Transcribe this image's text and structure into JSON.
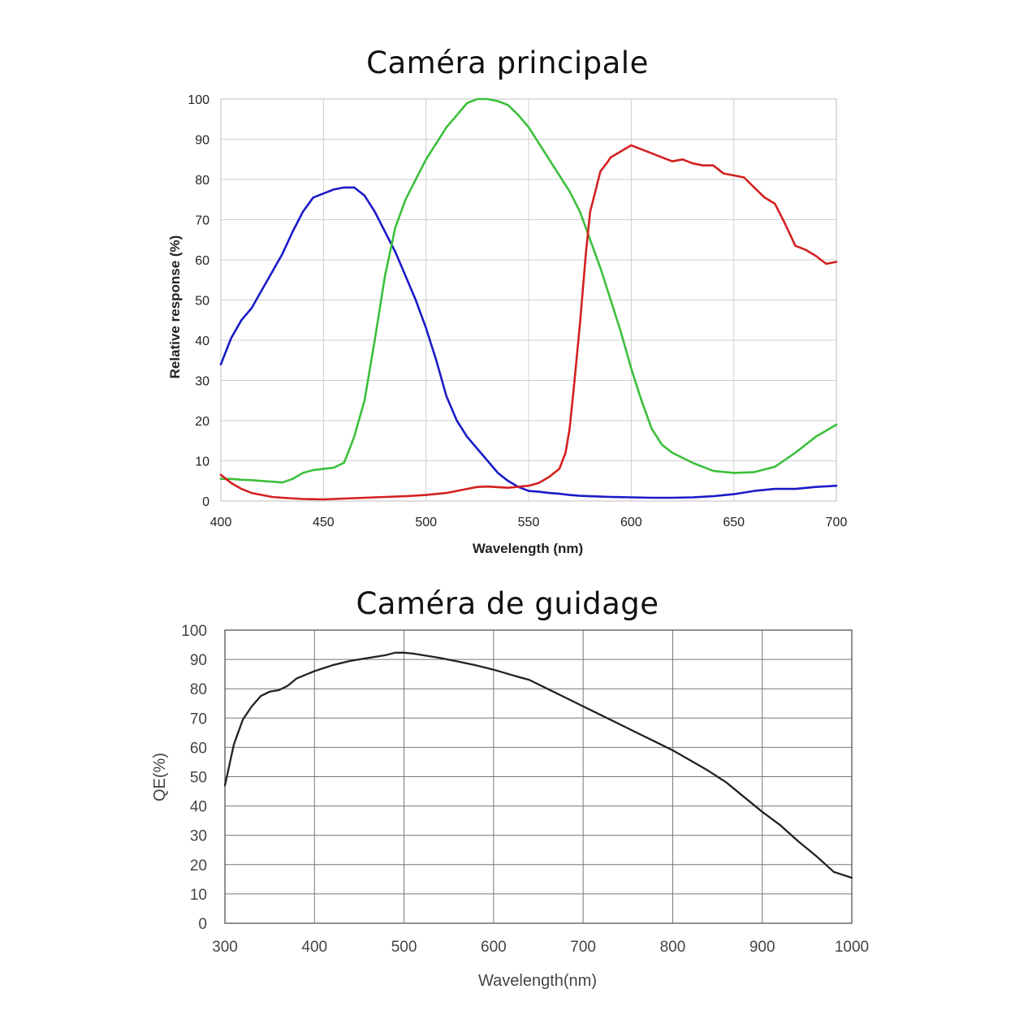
{
  "chart_data": [
    {
      "type": "line",
      "title": "Caméra principale",
      "xlabel": "Wavelength (nm)",
      "ylabel": "Relative response (%)",
      "xlim": [
        400,
        700
      ],
      "ylim": [
        0,
        100
      ],
      "xticks": [
        400,
        450,
        500,
        550,
        600,
        650,
        700
      ],
      "yticks": [
        0,
        10,
        20,
        30,
        40,
        50,
        60,
        70,
        80,
        90,
        100
      ],
      "grid": true,
      "series": [
        {
          "color": "#1a1ac8",
          "x": [
            400,
            405,
            410,
            415,
            420,
            425,
            430,
            435,
            440,
            445,
            450,
            455,
            460,
            465,
            470,
            475,
            480,
            485,
            490,
            495,
            500,
            505,
            510,
            515,
            520,
            525,
            530,
            535,
            540,
            545,
            550,
            555,
            560,
            565,
            570,
            575,
            580,
            585,
            590,
            600,
            610,
            620,
            630,
            640,
            650,
            660,
            670,
            680,
            690,
            700
          ],
          "y": [
            34,
            40.5,
            45,
            48,
            52.5,
            57,
            61.5,
            67,
            72,
            75.5,
            76.5,
            77.5,
            78,
            78,
            76,
            72,
            67,
            62,
            56,
            50,
            43,
            35,
            26,
            20,
            16,
            13,
            10,
            7,
            5,
            3.5,
            2.5,
            2.3,
            2,
            1.8,
            1.5,
            1.3,
            1.2,
            1.1,
            1.0,
            0.9,
            0.8,
            0.8,
            0.9,
            1.2,
            1.7,
            2.5,
            3.0,
            3.0,
            3.5,
            3.8
          ]
        },
        {
          "color": "#3cbf3c",
          "x": [
            400,
            405,
            410,
            415,
            420,
            425,
            430,
            435,
            440,
            445,
            450,
            455,
            460,
            462,
            465,
            470,
            475,
            480,
            485,
            490,
            495,
            500,
            505,
            510,
            515,
            520,
            525,
            530,
            535,
            540,
            545,
            550,
            555,
            560,
            565,
            570,
            575,
            580,
            585,
            590,
            595,
            600,
            605,
            610,
            615,
            620,
            630,
            640,
            650,
            660,
            670,
            680,
            690,
            700
          ],
          "y": [
            5.5,
            5.5,
            5.3,
            5.2,
            5.0,
            4.8,
            4.6,
            5.5,
            7.0,
            7.7,
            8.0,
            8.3,
            9.5,
            12,
            16,
            25,
            40,
            56,
            68,
            75,
            80,
            85,
            89,
            93,
            96,
            99,
            100,
            100,
            99.5,
            98.5,
            96,
            93,
            89,
            85,
            81,
            77,
            72,
            65,
            58,
            50,
            42,
            33,
            25,
            18,
            14,
            12,
            9.5,
            7.5,
            7,
            7.2,
            8.5,
            12,
            16,
            19
          ]
        },
        {
          "color": "#d42020",
          "x": [
            400,
            405,
            410,
            415,
            420,
            425,
            430,
            440,
            450,
            460,
            470,
            480,
            490,
            500,
            510,
            520,
            525,
            530,
            540,
            550,
            555,
            560,
            565,
            568,
            570,
            572,
            575,
            578,
            580,
            582,
            585,
            588,
            590,
            595,
            600,
            605,
            610,
            615,
            620,
            625,
            630,
            635,
            640,
            645,
            650,
            655,
            660,
            665,
            670,
            675,
            680,
            685,
            690,
            695,
            700
          ],
          "y": [
            6.5,
            4.5,
            3.0,
            2.0,
            1.5,
            1.0,
            0.8,
            0.5,
            0.4,
            0.6,
            0.8,
            1.0,
            1.2,
            1.5,
            2.0,
            3.0,
            3.5,
            3.6,
            3.3,
            3.8,
            4.5,
            6.0,
            8.0,
            12,
            18,
            28,
            44,
            62,
            72,
            76,
            82,
            84,
            85.5,
            87,
            88.5,
            87.5,
            86.5,
            85.5,
            84.5,
            85,
            84,
            83.5,
            83.5,
            81.5,
            81,
            80.5,
            78,
            75.5,
            74,
            69,
            63.5,
            62.5,
            61,
            59,
            59.5
          ]
        }
      ]
    },
    {
      "type": "line",
      "title": "Caméra de guidage",
      "xlabel": "Wavelength(nm)",
      "ylabel": "QE(%)",
      "xlim": [
        300,
        1000
      ],
      "ylim": [
        0,
        100
      ],
      "xticks": [
        300,
        400,
        500,
        600,
        700,
        800,
        900,
        1000
      ],
      "yticks": [
        0,
        10,
        20,
        30,
        40,
        50,
        60,
        70,
        80,
        90,
        100
      ],
      "grid": true,
      "series": [
        {
          "color": "#222222",
          "x": [
            300,
            305,
            310,
            320,
            330,
            340,
            350,
            360,
            370,
            380,
            400,
            420,
            440,
            460,
            480,
            490,
            500,
            510,
            540,
            560,
            580,
            600,
            620,
            640,
            660,
            680,
            700,
            720,
            740,
            760,
            780,
            800,
            820,
            840,
            860,
            880,
            900,
            920,
            940,
            960,
            980,
            1000
          ],
          "y": [
            47,
            54,
            61,
            69.5,
            74,
            77.5,
            79,
            79.5,
            81,
            83.5,
            86,
            88,
            89.5,
            90.5,
            91.5,
            92.3,
            92.3,
            92,
            90.5,
            89.3,
            88,
            86.5,
            84.7,
            83,
            80,
            77,
            74,
            71,
            68,
            65,
            62,
            59,
            55.5,
            52,
            48,
            43,
            38,
            33.5,
            28,
            23,
            17.5,
            15.5
          ]
        }
      ]
    }
  ]
}
